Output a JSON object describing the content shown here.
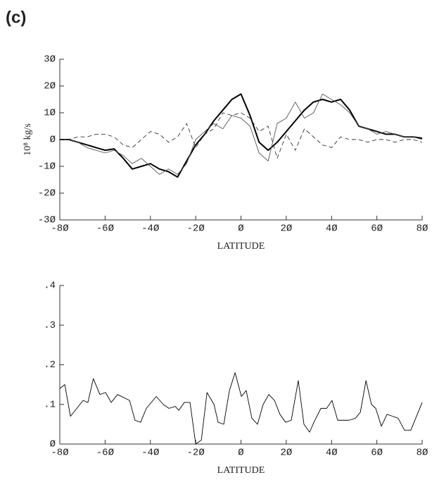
{
  "panel_label": "(c)",
  "chart_data": [
    {
      "type": "line",
      "ylabel": "10⁸ kg/s",
      "xlabel": "LATITUDE",
      "x": [
        -80,
        -76,
        -72,
        -68,
        -64,
        -60,
        -56,
        -52,
        -48,
        -44,
        -40,
        -36,
        -32,
        -28,
        -24,
        -20,
        -16,
        -12,
        -8,
        -4,
        0,
        4,
        8,
        12,
        16,
        20,
        24,
        28,
        32,
        36,
        40,
        44,
        48,
        52,
        56,
        60,
        64,
        68,
        72,
        76,
        80
      ],
      "series": [
        {
          "color": "#000000",
          "width": 2,
          "dashed": false,
          "values": [
            0,
            0,
            -1,
            -2,
            -3,
            -4,
            -3.5,
            -7,
            -11,
            -10,
            -9,
            -11,
            -12,
            -14,
            -8,
            -2,
            2,
            7,
            11,
            15,
            17,
            9,
            -1,
            -4,
            -1,
            3,
            7,
            11,
            14,
            15,
            14,
            15,
            11,
            5,
            4,
            3,
            2,
            2,
            1,
            1,
            0.5
          ]
        },
        {
          "color": "#555555",
          "width": 0.9,
          "dashed": false,
          "values": [
            0,
            0,
            -1,
            -3,
            -4,
            -5,
            -4,
            -6,
            -9,
            -7,
            -10,
            -13,
            -11,
            -13,
            -9,
            0,
            3,
            6,
            4,
            9,
            8,
            5,
            -5,
            -8,
            6,
            8,
            14,
            8,
            10,
            17,
            15,
            13,
            10,
            5,
            4,
            2,
            3,
            2,
            1,
            1,
            0
          ]
        },
        {
          "color": "#333333",
          "width": 0.9,
          "dashed": true,
          "values": [
            0,
            0,
            1,
            1,
            2,
            2,
            1,
            -2,
            -3,
            0,
            3,
            2,
            -1,
            1,
            6,
            -3,
            2,
            4,
            10,
            9,
            10,
            8,
            3,
            5,
            -7,
            2,
            -4,
            4,
            1,
            -2,
            -3,
            1,
            0,
            0,
            -1,
            0,
            0,
            -1,
            0,
            0,
            -1
          ]
        }
      ],
      "xlim": [
        -80,
        80
      ],
      "xticks": [
        {
          "value": -80,
          "label": "-8Ø"
        },
        {
          "value": -60,
          "label": "-6Ø"
        },
        {
          "value": -40,
          "label": "-4Ø"
        },
        {
          "value": -20,
          "label": "-2Ø"
        },
        {
          "value": 0,
          "label": "Ø"
        },
        {
          "value": 20,
          "label": "2Ø"
        },
        {
          "value": 40,
          "label": "4Ø"
        },
        {
          "value": 60,
          "label": "6Ø"
        },
        {
          "value": 80,
          "label": "8Ø"
        }
      ],
      "ylim": [
        -30,
        30
      ],
      "yticks": [
        {
          "value": -30,
          "label": "-3Ø"
        },
        {
          "value": -20,
          "label": "-2Ø"
        },
        {
          "value": -10,
          "label": "-1Ø"
        },
        {
          "value": 0,
          "label": "Ø"
        },
        {
          "value": 10,
          "label": "1Ø"
        },
        {
          "value": 20,
          "label": "2Ø"
        },
        {
          "value": 30,
          "label": "3Ø"
        }
      ]
    },
    {
      "type": "line",
      "xlabel": "LATITUDE",
      "x": [
        -80,
        -77.8,
        -75.3,
        -69.7,
        -67.6,
        -65.2,
        -62.3,
        -59.8,
        -57.3,
        -54.5,
        -49.2,
        -46.8,
        -44.3,
        -41.8,
        -37.4,
        -34.3,
        -31.8,
        -29.0,
        -27.5,
        -25.0,
        -22.5,
        -20.0,
        -17.5,
        -15.0,
        -11.9,
        -10.1,
        -7.6,
        -5.1,
        -2.6,
        0.2,
        2.3,
        4.8,
        7.3,
        9.8,
        12.3,
        14.8,
        17.2,
        19.7,
        22.2,
        25.3,
        27.8,
        30.3,
        32.2,
        35.3,
        37.8,
        40.2,
        42.7,
        45.2,
        47.7,
        50.5,
        52.7,
        55.2,
        57.6,
        59.5,
        62.0,
        64.5,
        67.0,
        69.4,
        72.2,
        75.0,
        80.0
      ],
      "series": [
        {
          "color": "#000000",
          "width": 0.9,
          "dashed": false,
          "values": [
            0.14,
            0.15,
            0.07,
            0.11,
            0.105,
            0.165,
            0.125,
            0.13,
            0.105,
            0.125,
            0.11,
            0.06,
            0.055,
            0.09,
            0.12,
            0.1,
            0.09,
            0.095,
            0.085,
            0.105,
            0.105,
            0.0,
            0.01,
            0.13,
            0.1,
            0.055,
            0.05,
            0.135,
            0.18,
            0.12,
            0.135,
            0.065,
            0.05,
            0.1,
            0.125,
            0.11,
            0.075,
            0.055,
            0.06,
            0.16,
            0.05,
            0.03,
            0.055,
            0.09,
            0.09,
            0.11,
            0.06,
            0.06,
            0.06,
            0.065,
            0.08,
            0.16,
            0.1,
            0.09,
            0.045,
            0.075,
            0.07,
            0.065,
            0.035,
            0.035,
            0.105
          ]
        }
      ],
      "xlim": [
        -80,
        80
      ],
      "xticks": [
        {
          "value": -80,
          "label": "-8Ø"
        },
        {
          "value": -60,
          "label": "-6Ø"
        },
        {
          "value": -40,
          "label": "-4Ø"
        },
        {
          "value": -20,
          "label": "-2Ø"
        },
        {
          "value": 0,
          "label": "Ø"
        },
        {
          "value": 20,
          "label": "2Ø"
        },
        {
          "value": 40,
          "label": "4Ø"
        },
        {
          "value": 60,
          "label": "6Ø"
        },
        {
          "value": 80,
          "label": "8Ø"
        }
      ],
      "ylim": [
        0,
        0.4
      ],
      "yticks": [
        {
          "value": 0,
          "label": "Ø"
        },
        {
          "value": 0.1,
          "label": ".1"
        },
        {
          "value": 0.2,
          "label": ".2"
        },
        {
          "value": 0.3,
          "label": ".3"
        },
        {
          "value": 0.4,
          "label": ".4"
        }
      ]
    }
  ]
}
